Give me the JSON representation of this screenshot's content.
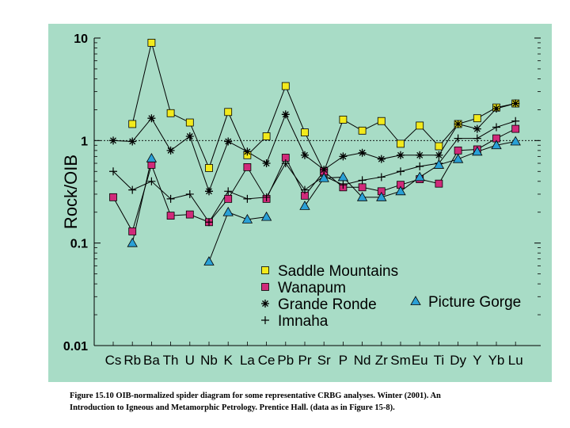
{
  "colors": {
    "panel_background": "#a8dcc6",
    "saddle_mountains": "#f2ea1c",
    "wanapum": "#d02a7a",
    "picture_gorge": "#2aa0d6",
    "line": "#000000"
  },
  "chart_data": {
    "type": "line",
    "ylabel": "Rock/OIB",
    "xlabel": "",
    "y_scale": "log",
    "ylim": [
      0.01,
      10
    ],
    "y_ticks": [
      {
        "value": 10,
        "label": "10"
      },
      {
        "value": 1,
        "label": "1"
      },
      {
        "value": 0.1,
        "label": "0.1"
      },
      {
        "value": 0.01,
        "label": "0.01"
      }
    ],
    "reference_line": 1,
    "legend_position": "bottom-right",
    "categories": [
      "Cs",
      "Rb",
      "Ba",
      "Th",
      "U",
      "Nb",
      "K",
      "La",
      "Ce",
      "Pb",
      "Pr",
      "Sr",
      "P",
      "Nd",
      "Zr",
      "Sm",
      "Eu",
      "Ti",
      "Dy",
      "Y",
      "Yb",
      "Lu"
    ],
    "series": [
      {
        "name": "Saddle Mountains",
        "marker": "square",
        "color_key": "saddle_mountains",
        "values": [
          null,
          1.45,
          9.0,
          1.85,
          1.5,
          0.54,
          1.9,
          0.72,
          1.1,
          3.4,
          1.2,
          0.5,
          1.6,
          1.25,
          1.55,
          0.93,
          1.4,
          0.88,
          1.45,
          1.65,
          2.1,
          2.3
        ]
      },
      {
        "name": "Wanapum",
        "marker": "square",
        "color_key": "wanapum",
        "values": [
          0.28,
          0.13,
          0.58,
          0.185,
          0.19,
          0.16,
          0.27,
          0.55,
          0.27,
          0.68,
          0.29,
          0.5,
          0.35,
          0.35,
          0.32,
          0.37,
          0.42,
          0.38,
          0.8,
          0.82,
          1.05,
          1.3
        ]
      },
      {
        "name": "Grande Ronde",
        "marker": "asterisk",
        "color_key": "line",
        "values": [
          1.0,
          0.98,
          1.65,
          0.8,
          1.1,
          0.32,
          0.98,
          0.78,
          0.6,
          1.8,
          0.72,
          0.52,
          0.7,
          0.76,
          0.66,
          0.72,
          0.72,
          0.72,
          1.45,
          1.3,
          2.05,
          2.3
        ]
      },
      {
        "name": "Imnaha",
        "marker": "plus",
        "color_key": "line",
        "values": [
          0.5,
          0.33,
          0.4,
          0.27,
          0.3,
          0.16,
          0.32,
          0.27,
          0.28,
          0.6,
          0.33,
          0.45,
          0.37,
          0.41,
          0.44,
          0.5,
          0.56,
          0.6,
          1.05,
          1.05,
          1.35,
          1.55
        ]
      },
      {
        "name": "Picture Gorge",
        "marker": "triangle",
        "color_key": "picture_gorge",
        "values": [
          null,
          0.1,
          0.67,
          null,
          null,
          0.066,
          0.2,
          0.17,
          0.18,
          null,
          0.23,
          0.43,
          0.44,
          0.28,
          0.28,
          0.32,
          0.44,
          0.58,
          0.66,
          0.78,
          0.9,
          0.98
        ]
      }
    ]
  },
  "caption": {
    "line1": "Figure 15.10 OIB-normalized spider diagram for some representative CRBG analyses. Winter (2001). An",
    "line2": "Introduction to Igneous and Metamorphic Petrology. Prentice Hall. (data as in Figure 15-8)."
  }
}
